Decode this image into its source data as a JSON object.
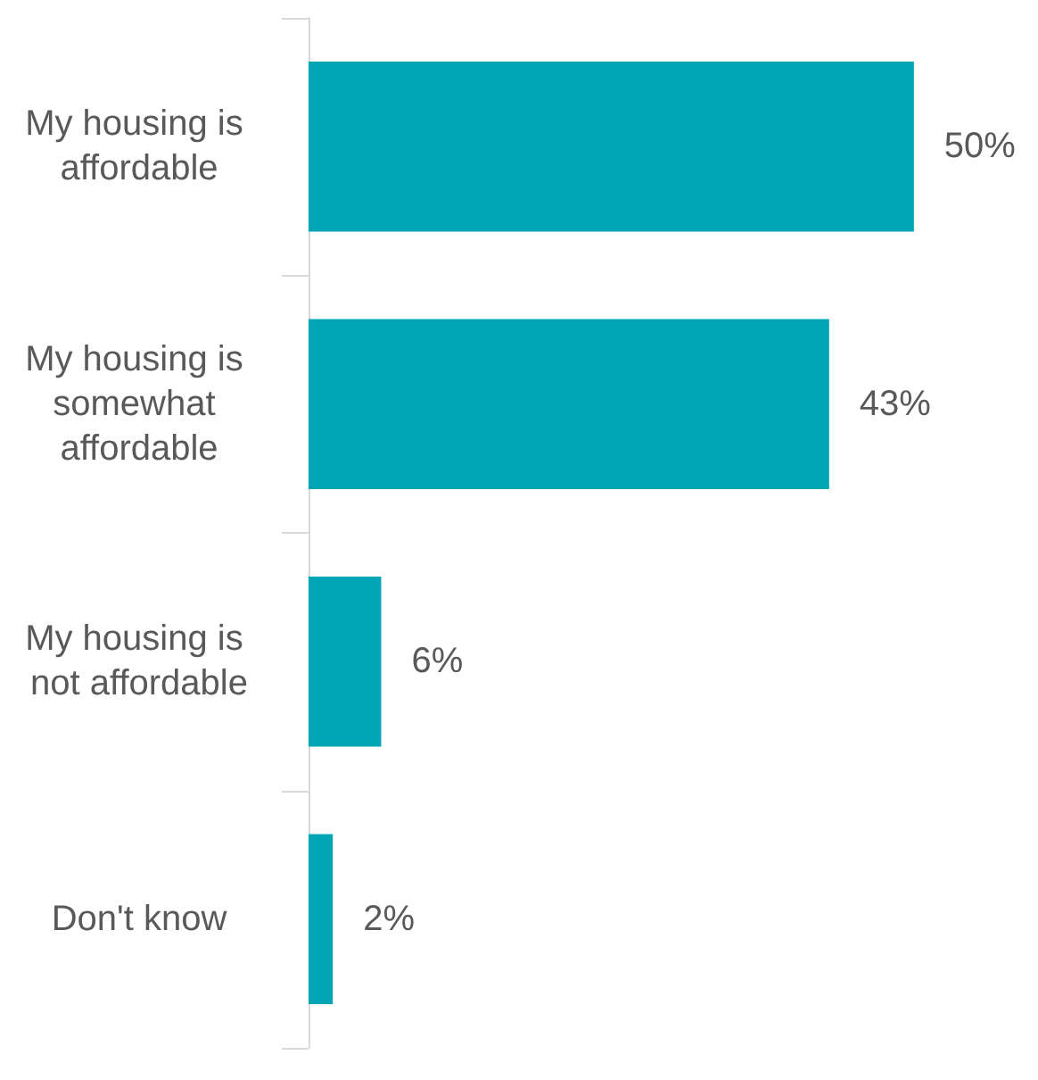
{
  "chart_data": {
    "type": "bar",
    "orientation": "horizontal",
    "categories": [
      "My housing is affordable",
      "My housing is somewhat affordable",
      "My housing is not affordable",
      "Don't know"
    ],
    "values": [
      50,
      43,
      6,
      2
    ],
    "color": "#00a5b5",
    "value_labels": [
      "50%",
      "43%",
      "6%",
      "2%"
    ]
  }
}
